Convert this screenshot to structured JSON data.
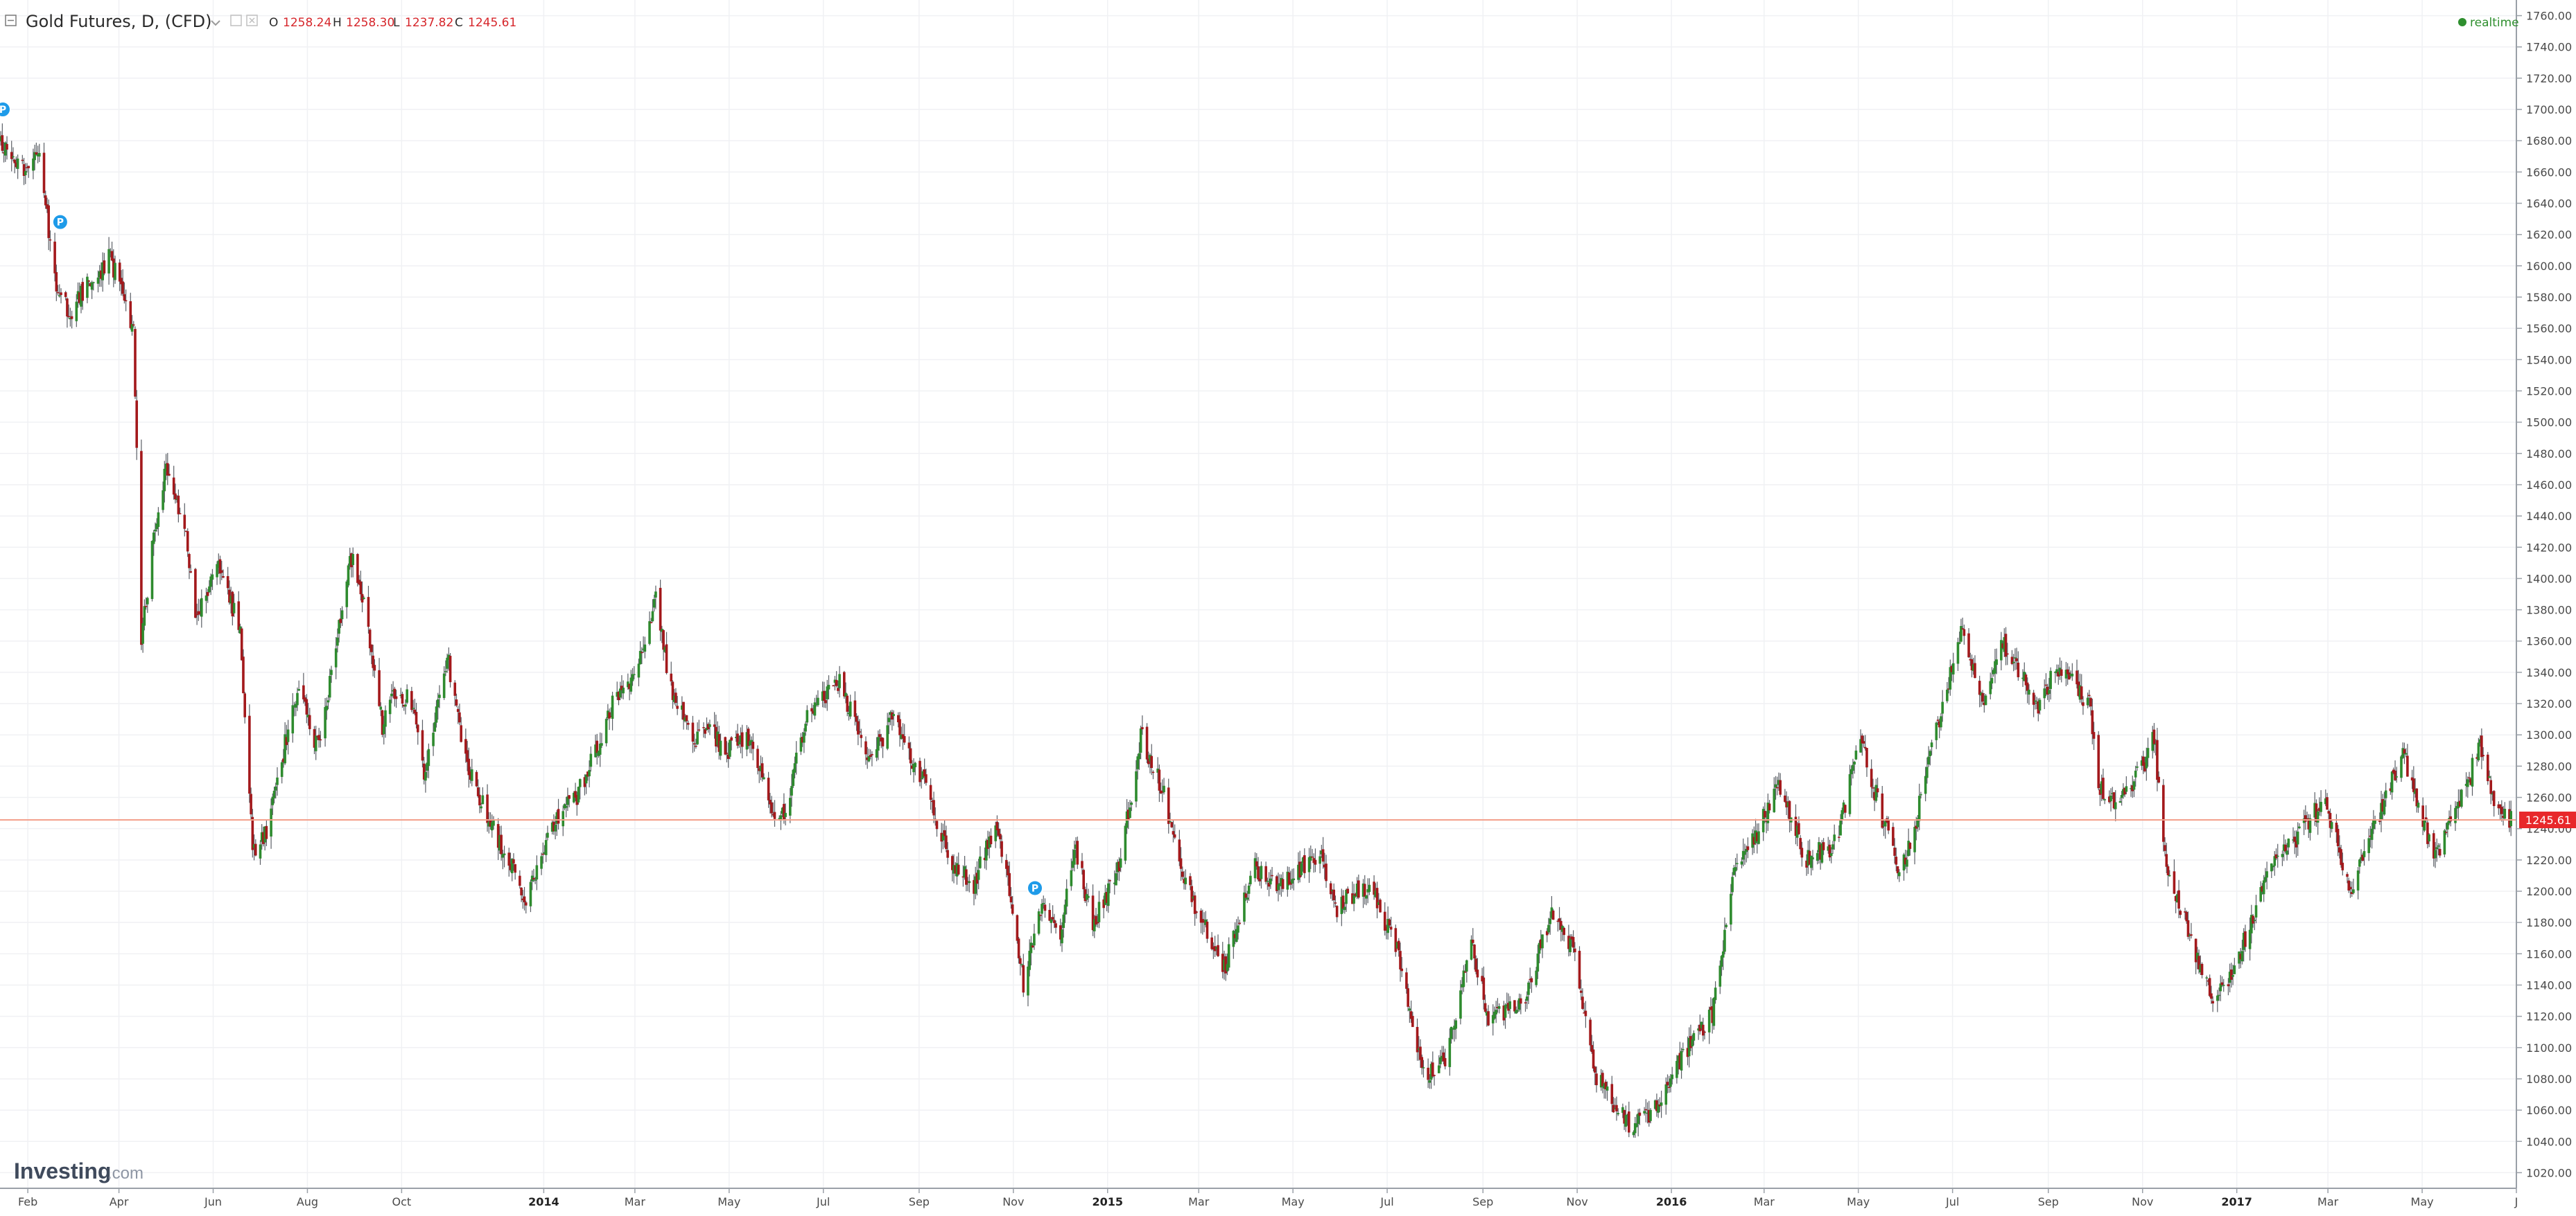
{
  "header": {
    "title": "Gold Futures, D, (CFD)",
    "chevron_icon": "chevron-down-icon",
    "collapse_icon": "minus-square-icon",
    "ohlc": [
      {
        "key": "O",
        "value": "1258.24"
      },
      {
        "key": "H",
        "value": "1258.30"
      },
      {
        "key": "L",
        "value": "1237.82"
      },
      {
        "key": "C",
        "value": "1245.61"
      }
    ],
    "realtime_label": "realtime"
  },
  "logo": {
    "main": "Investing",
    "suffix": ".com"
  },
  "colors": {
    "up": "#2e8b2e",
    "down": "#a3191c",
    "price_line": "#f3a08c",
    "price_tag": "#e8282b",
    "marker": "#1e9be9",
    "grid": "#f0f1f4",
    "realtime_dot": "#2f8f2f"
  },
  "chart_data": {
    "type": "candlestick",
    "symbol": "Gold Futures",
    "interval": "D",
    "ylim": [
      1010,
      1770
    ],
    "y_ticks": [
      "1020.00",
      "1040.00",
      "1060.00",
      "1080.00",
      "1100.00",
      "1120.00",
      "1140.00",
      "1160.00",
      "1180.00",
      "1200.00",
      "1220.00",
      "1240.00",
      "1260.00",
      "1280.00",
      "1300.00",
      "1320.00",
      "1340.00",
      "1360.00",
      "1380.00",
      "1400.00",
      "1420.00",
      "1440.00",
      "1460.00",
      "1480.00",
      "1500.00",
      "1520.00",
      "1540.00",
      "1560.00",
      "1580.00",
      "1600.00",
      "1620.00",
      "1640.00",
      "1660.00",
      "1680.00",
      "1700.00",
      "1720.00",
      "1740.00",
      "1760.00"
    ],
    "x_start": "2013-01-14",
    "x_end": "2017-07-01",
    "x_ticks": [
      {
        "label": "Feb",
        "date": "2013-02-01"
      },
      {
        "label": "Apr",
        "date": "2013-04-01"
      },
      {
        "label": "Jun",
        "date": "2013-06-01"
      },
      {
        "label": "Aug",
        "date": "2013-08-01"
      },
      {
        "label": "Oct",
        "date": "2013-10-01"
      },
      {
        "label": "2014",
        "date": "2014-01-01",
        "bold": true
      },
      {
        "label": "Mar",
        "date": "2014-03-01"
      },
      {
        "label": "May",
        "date": "2014-05-01"
      },
      {
        "label": "Jul",
        "date": "2014-07-01"
      },
      {
        "label": "Sep",
        "date": "2014-09-01"
      },
      {
        "label": "Nov",
        "date": "2014-11-01"
      },
      {
        "label": "2015",
        "date": "2015-01-01",
        "bold": true
      },
      {
        "label": "Mar",
        "date": "2015-03-01"
      },
      {
        "label": "May",
        "date": "2015-05-01"
      },
      {
        "label": "Jul",
        "date": "2015-07-01"
      },
      {
        "label": "Sep",
        "date": "2015-09-01"
      },
      {
        "label": "Nov",
        "date": "2015-11-01"
      },
      {
        "label": "2016",
        "date": "2016-01-01",
        "bold": true
      },
      {
        "label": "Mar",
        "date": "2016-03-01"
      },
      {
        "label": "May",
        "date": "2016-05-01"
      },
      {
        "label": "Jul",
        "date": "2016-07-01"
      },
      {
        "label": "Sep",
        "date": "2016-09-01"
      },
      {
        "label": "Nov",
        "date": "2016-11-01"
      },
      {
        "label": "2017",
        "date": "2017-01-01",
        "bold": true
      },
      {
        "label": "Mar",
        "date": "2017-03-01"
      },
      {
        "label": "May",
        "date": "2017-05-01"
      },
      {
        "label": "J",
        "date": "2017-07-01"
      }
    ],
    "last_price": 1245.61,
    "last_price_label": "1245.61",
    "price_path": [
      [
        "2013-01-14",
        1680
      ],
      [
        "2013-01-28",
        1662
      ],
      [
        "2013-02-08",
        1668
      ],
      [
        "2013-02-20",
        1578
      ],
      [
        "2013-03-01",
        1572
      ],
      [
        "2013-03-12",
        1590
      ],
      [
        "2013-03-26",
        1605
      ],
      [
        "2013-04-10",
        1560
      ],
      [
        "2013-04-15",
        1360
      ],
      [
        "2013-04-22",
        1420
      ],
      [
        "2013-05-01",
        1470
      ],
      [
        "2013-05-14",
        1430
      ],
      [
        "2013-05-20",
        1370
      ],
      [
        "2013-06-03",
        1412
      ],
      [
        "2013-06-18",
        1365
      ],
      [
        "2013-06-26",
        1225
      ],
      [
        "2013-07-05",
        1240
      ],
      [
        "2013-07-15",
        1285
      ],
      [
        "2013-07-25",
        1330
      ],
      [
        "2013-08-08",
        1290
      ],
      [
        "2013-08-28",
        1415
      ],
      [
        "2013-09-05",
        1390
      ],
      [
        "2013-09-18",
        1305
      ],
      [
        "2013-09-24",
        1330
      ],
      [
        "2013-10-08",
        1320
      ],
      [
        "2013-10-15",
        1275
      ],
      [
        "2013-10-30",
        1350
      ],
      [
        "2013-11-12",
        1280
      ],
      [
        "2013-12-05",
        1228
      ],
      [
        "2013-12-19",
        1195
      ],
      [
        "2014-01-03",
        1235
      ],
      [
        "2014-01-24",
        1265
      ],
      [
        "2014-02-14",
        1320
      ],
      [
        "2014-03-03",
        1345
      ],
      [
        "2014-03-14",
        1385
      ],
      [
        "2014-03-24",
        1330
      ],
      [
        "2014-04-07",
        1295
      ],
      [
        "2014-04-15",
        1305
      ],
      [
        "2014-04-29",
        1290
      ],
      [
        "2014-05-13",
        1298
      ],
      [
        "2014-05-30",
        1250
      ],
      [
        "2014-06-06",
        1253
      ],
      [
        "2014-06-20",
        1315
      ],
      [
        "2014-07-10",
        1335
      ],
      [
        "2014-07-31",
        1285
      ],
      [
        "2014-08-14",
        1310
      ],
      [
        "2014-09-05",
        1268
      ],
      [
        "2014-09-22",
        1215
      ],
      [
        "2014-10-06",
        1205
      ],
      [
        "2014-10-21",
        1245
      ],
      [
        "2014-11-03",
        1168
      ],
      [
        "2014-11-07",
        1140
      ],
      [
        "2014-11-20",
        1195
      ],
      [
        "2014-12-01",
        1170
      ],
      [
        "2014-12-10",
        1230
      ],
      [
        "2014-12-22",
        1178
      ],
      [
        "2015-01-08",
        1215
      ],
      [
        "2015-01-22",
        1300
      ],
      [
        "2015-02-05",
        1265
      ],
      [
        "2015-02-20",
        1205
      ],
      [
        "2015-03-10",
        1165
      ],
      [
        "2015-03-17",
        1150
      ],
      [
        "2015-04-06",
        1215
      ],
      [
        "2015-04-20",
        1200
      ],
      [
        "2015-05-18",
        1225
      ],
      [
        "2015-05-29",
        1190
      ],
      [
        "2015-06-18",
        1205
      ],
      [
        "2015-07-08",
        1160
      ],
      [
        "2015-07-24",
        1085
      ],
      [
        "2015-08-06",
        1088
      ],
      [
        "2015-08-24",
        1165
      ],
      [
        "2015-09-04",
        1120
      ],
      [
        "2015-09-28",
        1130
      ],
      [
        "2015-10-14",
        1185
      ],
      [
        "2015-10-28",
        1165
      ],
      [
        "2015-11-13",
        1080
      ],
      [
        "2015-12-03",
        1052
      ],
      [
        "2015-12-17",
        1055
      ],
      [
        "2016-01-08",
        1095
      ],
      [
        "2016-01-27",
        1120
      ],
      [
        "2016-02-11",
        1220
      ],
      [
        "2016-02-26",
        1240
      ],
      [
        "2016-03-10",
        1270
      ],
      [
        "2016-03-28",
        1220
      ],
      [
        "2016-04-15",
        1230
      ],
      [
        "2016-05-02",
        1295
      ],
      [
        "2016-05-27",
        1210
      ],
      [
        "2016-06-08",
        1250
      ],
      [
        "2016-06-24",
        1320
      ],
      [
        "2016-07-06",
        1365
      ],
      [
        "2016-07-21",
        1320
      ],
      [
        "2016-08-02",
        1360
      ],
      [
        "2016-08-25",
        1320
      ],
      [
        "2016-09-06",
        1345
      ],
      [
        "2016-09-27",
        1320
      ],
      [
        "2016-10-04",
        1265
      ],
      [
        "2016-10-14",
        1255
      ],
      [
        "2016-10-31",
        1278
      ],
      [
        "2016-11-08",
        1300
      ],
      [
        "2016-11-14",
        1225
      ],
      [
        "2016-12-01",
        1170
      ],
      [
        "2016-12-15",
        1130
      ],
      [
        "2016-12-28",
        1145
      ],
      [
        "2017-01-23",
        1215
      ],
      [
        "2017-02-08",
        1235
      ],
      [
        "2017-02-27",
        1258
      ],
      [
        "2017-03-14",
        1200
      ],
      [
        "2017-04-03",
        1250
      ],
      [
        "2017-04-18",
        1290
      ],
      [
        "2017-05-09",
        1220
      ],
      [
        "2017-05-31",
        1270
      ],
      [
        "2017-06-06",
        1295
      ],
      [
        "2017-06-16",
        1255
      ],
      [
        "2017-06-27",
        1245
      ]
    ],
    "markers": [
      {
        "label": "P",
        "date": "2013-01-14",
        "price": 1700
      },
      {
        "label": "P",
        "date": "2013-02-22",
        "price": 1628
      },
      {
        "label": "P",
        "date": "2014-11-15",
        "price": 1202
      }
    ]
  }
}
